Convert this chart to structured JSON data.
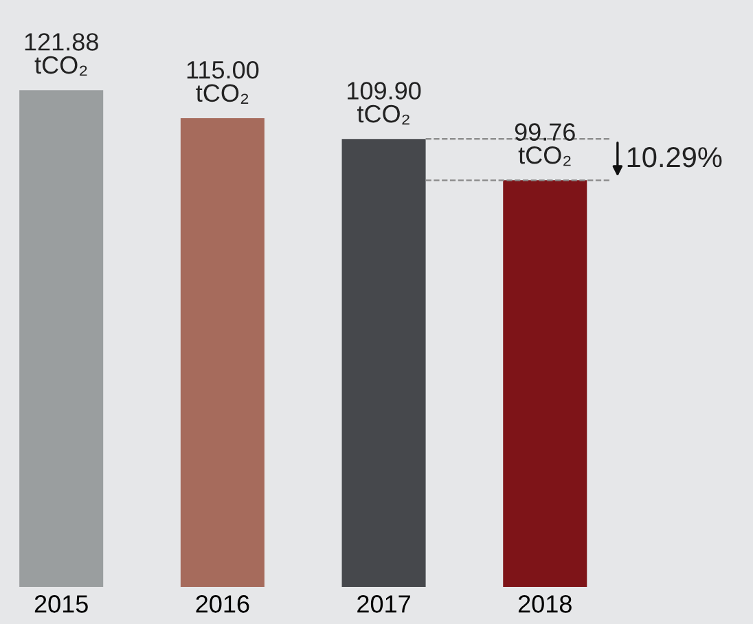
{
  "chart_data": {
    "type": "bar",
    "categories": [
      "2015",
      "2016",
      "2017",
      "2018"
    ],
    "values": [
      121.88,
      115.0,
      109.9,
      99.76
    ],
    "colors": [
      "#9a9e9f",
      "#a66b5c",
      "#46484c",
      "#7e1418"
    ],
    "value_labels": [
      "121.88\ntCO₂",
      "115.00\ntCO₂",
      "109.90\ntCO₂",
      "99.76\ntCO₂"
    ],
    "ylim": [
      0,
      144
    ],
    "tick_labels": "x",
    "grid": false,
    "legend": false,
    "ref_lines": [
      {
        "axis": "y",
        "value": 109.9,
        "label": null,
        "color": "#8a8a8a",
        "line_style": "dashed"
      },
      {
        "axis": "y",
        "value": 99.76,
        "label": null,
        "color": "#8a8a8a",
        "line_style": "dashed"
      }
    ],
    "annotations": [
      "10.29%"
    ]
  }
}
